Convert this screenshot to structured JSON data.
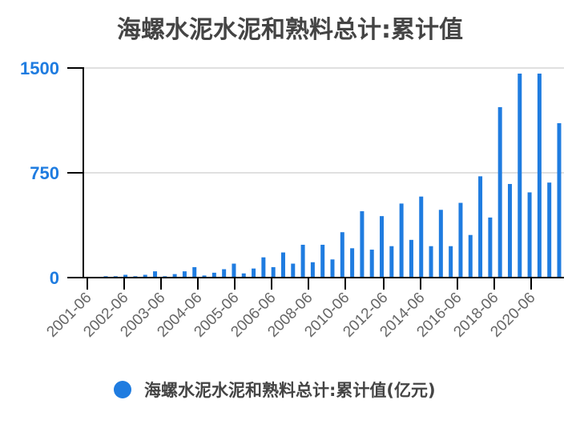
{
  "title": "海螺水泥水泥和熟料总计:累计值",
  "legend": {
    "label": "海螺水泥水泥和熟料总计:累计值(亿元)",
    "color": "#1f7ce0"
  },
  "colors": {
    "bar": "#1f7ce0",
    "axis": "#000000",
    "grid": "#e0e0e0",
    "ytick": "#1f7ce0",
    "xtick": "#666666"
  },
  "chart_data": {
    "type": "bar",
    "title": "海螺水泥水泥和熟料总计:累计值",
    "xlabel": "",
    "ylabel": "",
    "ylim": [
      0,
      1500
    ],
    "yticks": [
      0,
      750,
      1500
    ],
    "xtick_labels": [
      "2001-06",
      "2002-06",
      "2003-06",
      "2004-06",
      "2005-06",
      "2006-06",
      "2008-06",
      "2010-06",
      "2012-06",
      "2014-06",
      "2016-06",
      "2018-06",
      "2020-06"
    ],
    "grid": true,
    "legend_position": "bottom",
    "series": [
      {
        "name": "海螺水泥水泥和熟料总计:累计值(亿元)",
        "values": [
          10,
          10,
          20,
          10,
          20,
          45,
          10,
          25,
          45,
          75,
          15,
          35,
          60,
          100,
          30,
          65,
          145,
          75,
          180,
          100,
          235,
          110,
          235,
          130,
          325,
          210,
          475,
          200,
          440,
          225,
          530,
          270,
          580,
          225,
          485,
          225,
          535,
          305,
          725,
          430,
          1220,
          670,
          1460,
          610,
          1460,
          680,
          1105
        ]
      }
    ]
  }
}
